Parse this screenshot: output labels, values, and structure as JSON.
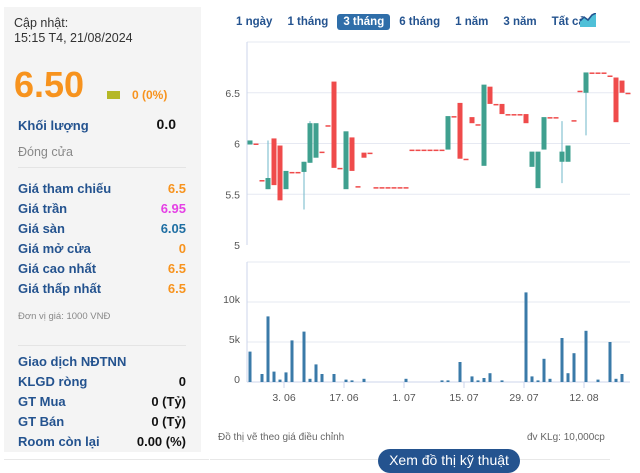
{
  "info": {
    "update_label": "Cập nhật:",
    "update_time": "15:15 T4, 21/08/2024",
    "price": "6.50",
    "change": "0 (0%)",
    "volume_label": "Khối lượng",
    "volume_value": "0.0",
    "status": "Đóng cửa",
    "rows": [
      {
        "label": "Giá tham chiếu",
        "value": "6.5",
        "color": "#f7931e"
      },
      {
        "label": "Giá trần",
        "value": "6.95",
        "color": "#e540e5"
      },
      {
        "label": "Giá sàn",
        "value": "6.05",
        "color": "#1f6fa3"
      },
      {
        "label": "Giá mở cửa",
        "value": "0",
        "color": "#f7931e"
      },
      {
        "label": "Giá cao nhất",
        "value": "6.5",
        "color": "#f7931e"
      },
      {
        "label": "Giá thấp nhất",
        "value": "6.5",
        "color": "#f7931e"
      }
    ],
    "unit": "Đơn vị giá: 1000 VNĐ",
    "foreign_title": "Giao dịch NĐTNN",
    "foreign": [
      {
        "label": "KLGD ròng",
        "value": "0"
      },
      {
        "label": "GT Mua",
        "value": "0 (Tỷ)"
      },
      {
        "label": "GT Bán",
        "value": "0 (Tỷ)"
      },
      {
        "label": "Room còn lại",
        "value": "0.00 (%)"
      }
    ]
  },
  "tabs": [
    {
      "label": "1 ngày"
    },
    {
      "label": "1 tháng"
    },
    {
      "label": "3 tháng",
      "active": true
    },
    {
      "label": "6 tháng"
    },
    {
      "label": "1 năm"
    },
    {
      "label": "3 năm"
    },
    {
      "label": "Tất cả"
    }
  ],
  "chart_type_icon": "area-chart-icon",
  "footer": {
    "note": "Đồ thị vẽ theo giá điều chỉnh",
    "unit": "đv KLg: 10,000cp",
    "button": "Xem đồ thị kỹ thuật"
  },
  "chart_data": {
    "type": "candlestick",
    "up_color": "#3fa08f",
    "down_color": "#ef4b4b",
    "price_axis": {
      "ticks": [
        "5",
        "5.5",
        "6",
        "6.5"
      ],
      "ylim": [
        5,
        7
      ]
    },
    "volume_axis": {
      "ticks": [
        "0",
        "5k",
        "10k"
      ],
      "ylim": [
        0,
        15
      ]
    },
    "x_ticks": [
      {
        "label": "3. 06",
        "index": 6
      },
      {
        "label": "17. 06",
        "index": 16
      },
      {
        "label": "1. 07",
        "index": 26
      },
      {
        "label": "15. 07",
        "index": 36
      },
      {
        "label": "29. 07",
        "index": 46
      },
      {
        "label": "12. 08",
        "index": 56
      }
    ],
    "candles": [
      [
        5.99,
        6.03,
        5.99,
        6.03
      ],
      [
        6.0,
        6.0,
        6.0,
        6.0
      ],
      [
        5.64,
        5.64,
        5.64,
        5.64
      ],
      [
        5.55,
        6.03,
        5.55,
        5.66
      ],
      [
        6.05,
        6.05,
        5.59,
        5.59
      ],
      [
        5.98,
        5.98,
        5.44,
        5.44
      ],
      [
        5.55,
        5.73,
        5.55,
        5.73
      ],
      [
        5.72,
        5.72,
        5.72,
        5.72
      ],
      [
        5.72,
        5.72,
        5.72,
        5.72
      ],
      [
        5.72,
        5.82,
        5.35,
        5.82
      ],
      [
        5.81,
        6.22,
        5.81,
        6.2
      ],
      [
        5.86,
        6.2,
        5.86,
        6.2
      ],
      [
        5.92,
        5.92,
        5.92,
        5.92
      ],
      [
        6.18,
        6.18,
        6.18,
        6.18
      ],
      [
        6.61,
        6.61,
        5.76,
        5.76
      ],
      [
        5.76,
        5.76,
        5.76,
        5.76
      ],
      [
        5.55,
        6.12,
        5.55,
        6.12
      ],
      [
        6.06,
        6.06,
        5.73,
        5.73
      ],
      [
        5.58,
        5.58,
        5.58,
        5.58
      ],
      [
        5.91,
        5.91,
        5.86,
        5.86
      ],
      [
        5.91,
        5.91,
        5.91,
        5.91
      ],
      [
        5.57,
        5.57,
        5.57,
        5.57
      ],
      [
        5.57,
        5.57,
        5.57,
        5.57
      ],
      [
        5.57,
        5.57,
        5.57,
        5.57
      ],
      [
        5.57,
        5.57,
        5.57,
        5.57
      ],
      [
        5.57,
        5.57,
        5.57,
        5.57
      ],
      [
        5.57,
        5.57,
        5.57,
        5.57
      ],
      [
        5.94,
        5.94,
        5.94,
        5.94
      ],
      [
        5.94,
        5.94,
        5.94,
        5.94
      ],
      [
        5.94,
        5.94,
        5.94,
        5.94
      ],
      [
        5.94,
        5.94,
        5.94,
        5.94
      ],
      [
        5.94,
        5.94,
        5.94,
        5.94
      ],
      [
        5.94,
        5.94,
        5.94,
        5.94
      ],
      [
        5.94,
        6.27,
        5.94,
        6.27
      ],
      [
        6.27,
        6.27,
        6.27,
        6.27
      ],
      [
        6.4,
        6.4,
        5.85,
        5.85
      ],
      [
        5.85,
        5.85,
        5.85,
        5.85
      ],
      [
        6.26,
        6.26,
        6.2,
        6.2
      ],
      [
        6.19,
        6.19,
        6.19,
        6.19
      ],
      [
        5.78,
        6.58,
        5.78,
        6.58
      ],
      [
        6.56,
        6.56,
        6.39,
        6.39
      ],
      [
        6.39,
        6.39,
        6.39,
        6.39
      ],
      [
        6.39,
        6.39,
        6.29,
        6.29
      ],
      [
        6.29,
        6.29,
        6.29,
        6.29
      ],
      [
        6.29,
        6.29,
        6.29,
        6.29
      ],
      [
        6.29,
        6.29,
        6.29,
        6.29
      ],
      [
        6.29,
        6.29,
        6.2,
        6.2
      ],
      [
        5.77,
        5.92,
        5.77,
        5.92
      ],
      [
        5.56,
        5.92,
        5.56,
        5.92
      ],
      [
        5.94,
        6.26,
        5.94,
        6.26
      ],
      [
        6.26,
        6.26,
        6.26,
        6.26
      ],
      [
        6.26,
        6.26,
        6.26,
        6.26
      ],
      [
        5.82,
        6.22,
        5.61,
        5.92
      ],
      [
        5.82,
        5.98,
        5.82,
        5.98
      ],
      [
        6.23,
        6.23,
        6.23,
        6.23
      ],
      [
        6.52,
        6.52,
        6.52,
        6.52
      ],
      [
        6.5,
        6.7,
        6.08,
        6.7
      ],
      [
        6.7,
        6.7,
        6.7,
        6.7
      ],
      [
        6.7,
        6.7,
        6.7,
        6.7
      ],
      [
        6.7,
        6.7,
        6.7,
        6.7
      ],
      [
        6.67,
        6.67,
        6.67,
        6.67
      ],
      [
        6.65,
        6.65,
        6.21,
        6.21
      ],
      [
        6.62,
        6.62,
        6.5,
        6.5
      ],
      [
        6.5,
        6.5,
        6.5,
        6.5
      ]
    ],
    "candle_format": [
      "open",
      "high",
      "low",
      "close"
    ],
    "volume": [
      3.8,
      0,
      1.0,
      8.2,
      1.3,
      0.3,
      1.2,
      5.2,
      0,
      6.3,
      0.4,
      2.2,
      1.0,
      0,
      1.0,
      0,
      0.3,
      0.2,
      0,
      0.4,
      0,
      0,
      0,
      0,
      0,
      0,
      0.4,
      0,
      0,
      0,
      0,
      0,
      0.2,
      0.2,
      0,
      2.5,
      0,
      0.7,
      0.2,
      0.5,
      1.1,
      0,
      0.2,
      0,
      0,
      0,
      11.2,
      0.7,
      0.2,
      2.9,
      0.4,
      0,
      5.5,
      1.1,
      3.6,
      0,
      6.4,
      0,
      0.3,
      0,
      5.0,
      0.4,
      1.0,
      0
    ],
    "volume_color": "#3a7aa8"
  }
}
